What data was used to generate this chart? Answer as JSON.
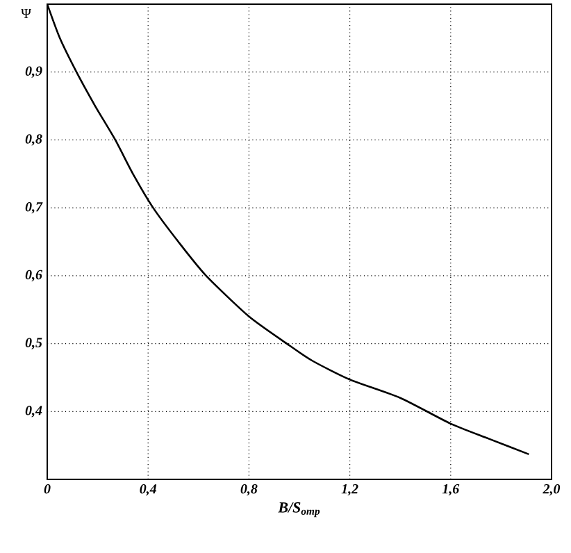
{
  "chart_data": {
    "type": "line",
    "xlabel": "B/S$_{отр}$",
    "ylabel": "Ψ",
    "x": [
      0,
      0.05,
      0.116,
      0.19,
      0.27,
      0.34,
      0.42,
      0.52,
      0.63,
      0.8,
      0.95,
      1.05,
      1.2,
      1.4,
      1.6,
      1.75,
      1.91
    ],
    "series": [
      {
        "color": "#000000",
        "values": [
          1.0,
          0.95,
          0.9,
          0.85,
          0.8,
          0.75,
          0.7,
          0.65,
          0.6,
          0.54,
          0.5,
          0.475,
          0.447,
          0.42,
          0.382,
          0.36,
          0.337
        ]
      }
    ],
    "xlim": [
      0,
      2.0
    ],
    "ylim": [
      0.3,
      1.0
    ],
    "xticks": [
      {
        "value": 0,
        "label": "0"
      },
      {
        "value": 0.4,
        "label": "0,4"
      },
      {
        "value": 0.8,
        "label": "0,8"
      },
      {
        "value": 1.2,
        "label": "1,2"
      },
      {
        "value": 1.6,
        "label": "1,6"
      },
      {
        "value": 2.0,
        "label": "2,0"
      }
    ],
    "yticks": [
      {
        "value": 0.4,
        "label": "0,4"
      },
      {
        "value": 0.5,
        "label": "0,5"
      },
      {
        "value": 0.6,
        "label": "0,6"
      },
      {
        "value": 0.7,
        "label": "0,7"
      },
      {
        "value": 0.8,
        "label": "0,8"
      },
      {
        "value": 0.9,
        "label": "0,9"
      }
    ],
    "grid": true,
    "marker": "none",
    "line_style": "solid"
  }
}
